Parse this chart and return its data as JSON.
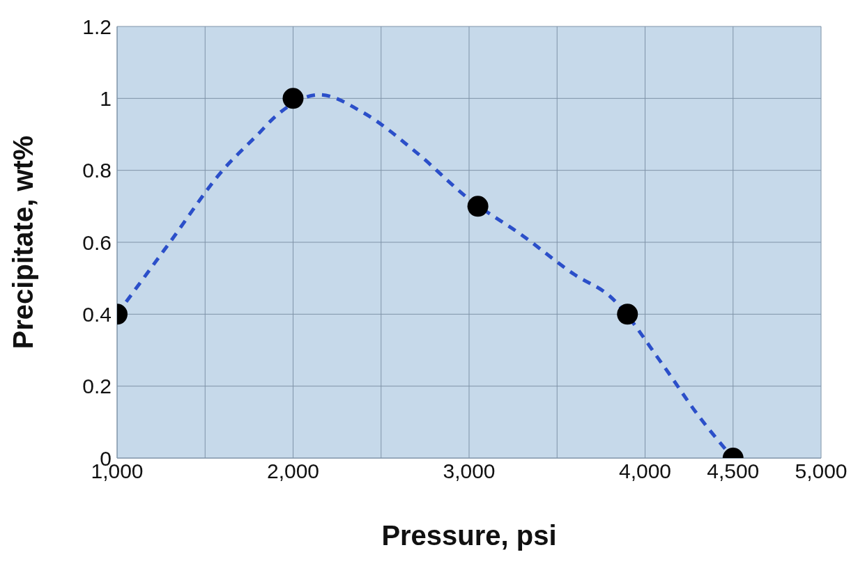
{
  "chart_data": {
    "type": "scatter",
    "xlabel": "Pressure, psi",
    "ylabel": "Precipitate, wt%",
    "xlim": [
      1000,
      5000
    ],
    "xticks": [
      {
        "value": 1000,
        "label": "1,000"
      },
      {
        "value": 1500,
        "label": null
      },
      {
        "value": 2000,
        "label": "2,000"
      },
      {
        "value": 2500,
        "label": null
      },
      {
        "value": 3000,
        "label": "3,000"
      },
      {
        "value": 3500,
        "label": null
      },
      {
        "value": 4000,
        "label": "4,000"
      },
      {
        "value": 4500,
        "label": "4,500"
      },
      {
        "value": 5000,
        "label": "5,000"
      }
    ],
    "ylim": [
      0,
      1.2
    ],
    "yticks": [
      0,
      0.2,
      0.4,
      0.6,
      0.8,
      1,
      1.2
    ],
    "grid": true,
    "marker": "circle",
    "series": [
      {
        "type": "line",
        "color": "#2b4fc9",
        "line_style": "dashed",
        "marker": "none",
        "x": [
          1000,
          1300,
          1600,
          1800,
          1900,
          2150,
          2400,
          2700,
          3000,
          3300,
          3600,
          3800,
          4100,
          4300,
          4500
        ],
        "values": [
          0.4,
          0.6,
          0.8,
          0.9,
          0.95,
          1.01,
          0.96,
          0.85,
          0.72,
          0.62,
          0.51,
          0.45,
          0.26,
          0.12,
          0
        ]
      },
      {
        "color": "#000000",
        "x": [
          1000,
          2000,
          3050,
          3900,
          4500
        ],
        "values": [
          0.4,
          1,
          0.7,
          0.4,
          0
        ]
      }
    ]
  }
}
